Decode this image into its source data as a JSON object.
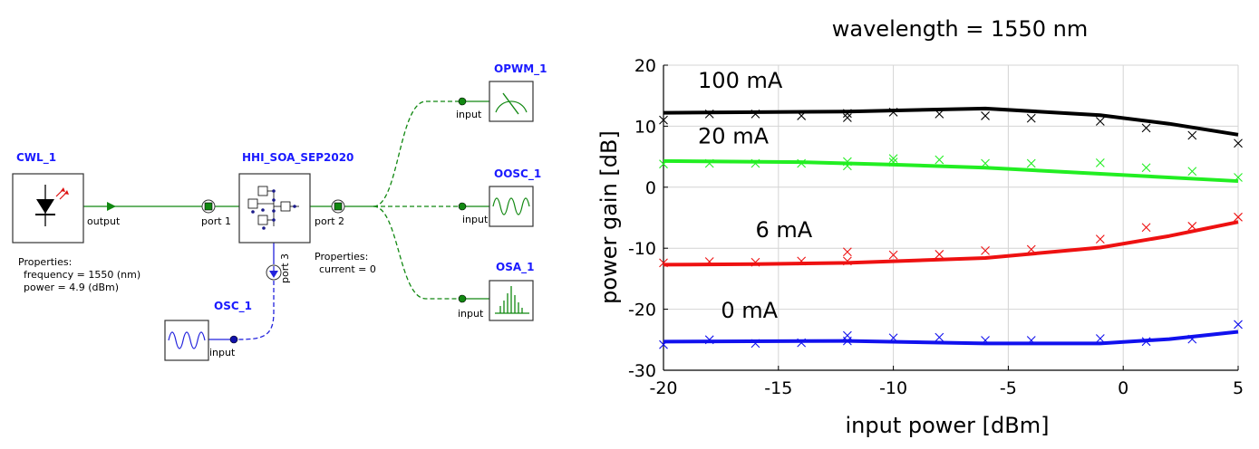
{
  "schematic": {
    "cwl": {
      "name": "CWL_1",
      "port": "output",
      "properties_title": "Properties:",
      "prop1": "frequency = 1550 (nm)",
      "prop2": "power = 4.9 (dBm)"
    },
    "soa": {
      "name": "HHI_SOA_SEP2020",
      "port1": "port 1",
      "port2": "port 2",
      "port3": "port 3",
      "properties_title": "Properties:",
      "prop1": "current = 0"
    },
    "osc": {
      "name": "OSC_1",
      "port": "input"
    },
    "opwm": {
      "name": "OPWM_1",
      "port": "input"
    },
    "oosc": {
      "name": "OOSC_1",
      "port": "input"
    },
    "osa": {
      "name": "OSA_1",
      "port": "input"
    },
    "colors": {
      "label": "#1a1aff",
      "optical": "#118811",
      "electrical": "#2222dd"
    }
  },
  "chart_data": {
    "type": "line",
    "title": "wavelength = 1550 nm",
    "xlabel": "input power [dBm]",
    "ylabel": "power gain [dB]",
    "xlim": [
      -20,
      5
    ],
    "ylim": [
      -30,
      20
    ],
    "xticks": [
      -20,
      -15,
      -10,
      -5,
      0,
      5
    ],
    "yticks": [
      -30,
      -20,
      -10,
      0,
      10,
      20
    ],
    "grid": true,
    "series": [
      {
        "name": "100 mA",
        "color": "#000000",
        "line_x": [
          -20,
          -12,
          -6,
          -1,
          2,
          5
        ],
        "line_y": [
          12.2,
          12.4,
          12.9,
          11.8,
          10.4,
          8.6
        ],
        "marker_x": [
          -20,
          -18,
          -16,
          -14,
          -12,
          -12,
          -10,
          -8,
          -6,
          -4,
          -1,
          1,
          3,
          5
        ],
        "marker_y": [
          11,
          12,
          12,
          11.7,
          11.4,
          12.1,
          12.3,
          12,
          11.7,
          11.3,
          10.8,
          9.7,
          8.5,
          7.2
        ]
      },
      {
        "name": "20 mA",
        "color": "#22ee22",
        "line_x": [
          -20,
          -14,
          -10,
          -6,
          -1,
          5
        ],
        "line_y": [
          4.3,
          4.1,
          3.7,
          3.2,
          2.2,
          1
        ],
        "marker_x": [
          -20,
          -18,
          -16,
          -14,
          -12,
          -12,
          -10,
          -10,
          -8,
          -6,
          -4,
          -1,
          1,
          3,
          5
        ],
        "marker_y": [
          3.8,
          3.9,
          3.9,
          3.9,
          3.5,
          4.2,
          4.1,
          4.7,
          4.5,
          3.9,
          3.9,
          4,
          3.2,
          2.6,
          1.6
        ]
      },
      {
        "name": "6 mA",
        "color": "#ee1111",
        "line_x": [
          -20,
          -16,
          -12,
          -6,
          -1,
          2,
          5
        ],
        "line_y": [
          -12.7,
          -12.6,
          -12.4,
          -11.6,
          -9.9,
          -8,
          -5.7
        ],
        "marker_x": [
          -20,
          -18,
          -16,
          -14,
          -12,
          -12,
          -10,
          -8,
          -6,
          -4,
          -1,
          1,
          3,
          5
        ],
        "marker_y": [
          -12.4,
          -12.2,
          -12.3,
          -12.1,
          -12.1,
          -10.6,
          -11.1,
          -11,
          -10.4,
          -10.2,
          -8.5,
          -6.6,
          -6.4,
          -4.9
        ]
      },
      {
        "name": "0 mA",
        "color": "#1111ee",
        "line_x": [
          -20,
          -12,
          -6,
          -1,
          2,
          5
        ],
        "line_y": [
          -25.3,
          -25.2,
          -25.6,
          -25.6,
          -24.9,
          -23.7
        ],
        "marker_x": [
          -20,
          -18,
          -16,
          -14,
          -12,
          -12,
          -10,
          -8,
          -6,
          -4,
          -1,
          1,
          3,
          5
        ],
        "marker_y": [
          -25.8,
          -25,
          -25.6,
          -25.5,
          -24.3,
          -25.2,
          -24.7,
          -24.6,
          -25.1,
          -25.1,
          -24.8,
          -25.3,
          -24.9,
          -22.5
        ]
      }
    ]
  }
}
